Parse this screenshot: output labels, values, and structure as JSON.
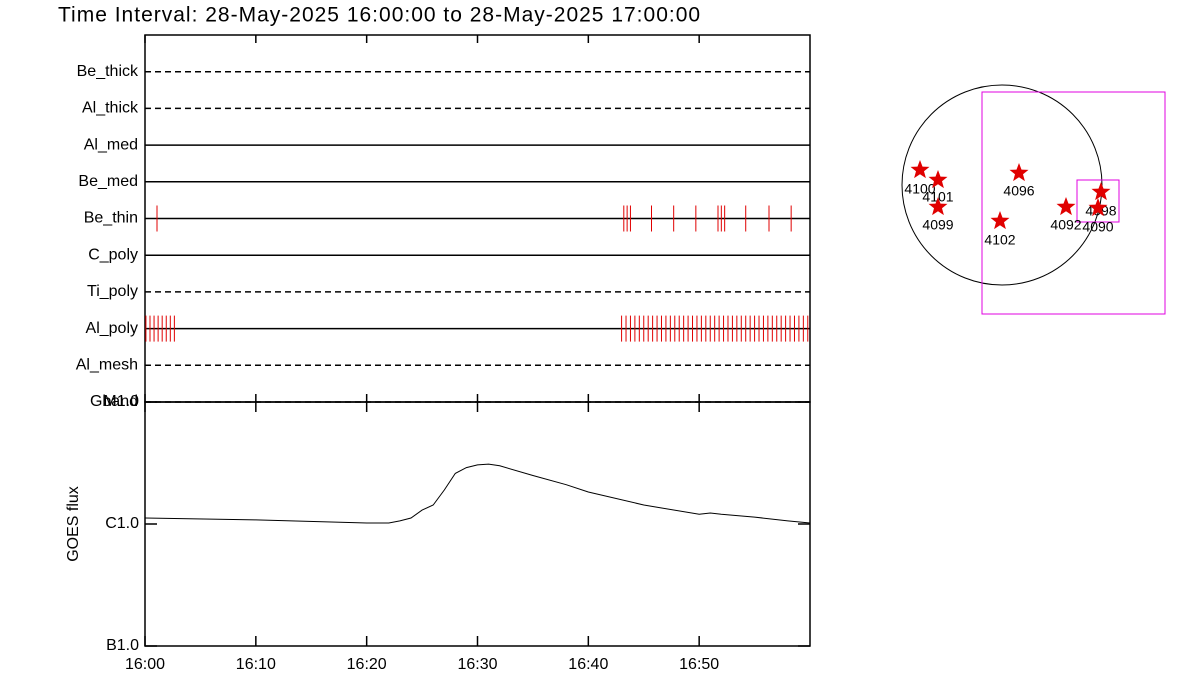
{
  "chart_data": [
    {
      "type": "event",
      "title": "Time Interval: 28-May-2025 16:00:00 to 28-May-2025 17:00:00",
      "categories": [
        "Be_thick",
        "Al_thick",
        "Al_med",
        "Be_med",
        "Be_thin",
        "C_poly",
        "Ti_poly",
        "Al_poly",
        "Al_mesh",
        "Gband"
      ],
      "line_styles": [
        "dashed",
        "dashed",
        "solid",
        "solid",
        "solid",
        "solid",
        "dashed",
        "solid",
        "dashed",
        "dashed"
      ],
      "color": "#e00000",
      "xlim": [
        "16:00:00",
        "17:00:00"
      ],
      "xticks": [
        "16:00:00",
        "16:10:00",
        "16:20:00",
        "16:30:00",
        "16:40:00",
        "16:50:00"
      ],
      "events": [
        [],
        [],
        [],
        [],
        [
          "16:01:05",
          "16:43:12",
          "16:43:30",
          "16:43:48",
          "16:45:42",
          "16:47:42",
          "16:49:42",
          "16:51:42",
          "16:52:00",
          "16:52:18",
          "16:54:12",
          "16:56:18",
          "16:58:18"
        ],
        [],
        [],
        [
          "16:00:05",
          "16:00:27",
          "16:00:49",
          "16:01:11",
          "16:01:33",
          "16:01:55",
          "16:02:17",
          "16:02:39",
          "16:43:00",
          "16:43:24",
          "16:43:48",
          "16:44:12",
          "16:44:36",
          "16:45:00",
          "16:45:24",
          "16:45:48",
          "16:46:12",
          "16:46:36",
          "16:47:00",
          "16:47:24",
          "16:47:48",
          "16:48:12",
          "16:48:36",
          "16:49:00",
          "16:49:24",
          "16:49:48",
          "16:50:12",
          "16:50:36",
          "16:51:00",
          "16:51:24",
          "16:51:48",
          "16:52:12",
          "16:52:36",
          "16:53:00",
          "16:53:24",
          "16:53:48",
          "16:54:12",
          "16:54:36",
          "16:55:00",
          "16:55:24",
          "16:55:48",
          "16:56:12",
          "16:56:36",
          "16:57:00",
          "16:57:24",
          "16:57:48",
          "16:58:12",
          "16:58:36",
          "16:59:00",
          "16:59:24",
          "16:59:48"
        ],
        [],
        []
      ]
    },
    {
      "type": "line",
      "ylabel": "GOES flux",
      "log_y": true,
      "color": "#000000",
      "xlim": [
        "16:00:00",
        "17:00:00"
      ],
      "xticks": [
        {
          "value": "16:00:00",
          "label": "16:00"
        },
        {
          "value": "16:10:00",
          "label": "16:10"
        },
        {
          "value": "16:20:00",
          "label": "16:20"
        },
        {
          "value": "16:30:00",
          "label": "16:30"
        },
        {
          "value": "16:40:00",
          "label": "16:40"
        },
        {
          "value": "16:50:00",
          "label": "16:50"
        }
      ],
      "ylim": [
        1e-07,
        1e-05
      ],
      "yticks": [
        {
          "value": 1e-07,
          "label": "B1.0"
        },
        {
          "value": 1e-06,
          "label": "C1.0"
        },
        {
          "value": 1e-05,
          "label": "M1.0"
        }
      ],
      "x": [
        "16:00:00",
        "16:10:00",
        "16:20:00",
        "16:22:00",
        "16:23:00",
        "16:24:00",
        "16:25:00",
        "16:26:00",
        "16:27:00",
        "16:28:00",
        "16:29:00",
        "16:30:00",
        "16:31:00",
        "16:32:00",
        "16:35:00",
        "16:38:00",
        "16:40:00",
        "16:45:00",
        "16:50:00",
        "16:51:00",
        "16:52:00",
        "16:55:00",
        "16:58:00",
        "17:00:00"
      ],
      "values": [
        1.12e-06,
        1.08e-06,
        1.02e-06,
        1.02e-06,
        1.06e-06,
        1.12e-06,
        1.3e-06,
        1.43e-06,
        1.9e-06,
        2.6e-06,
        2.9e-06,
        3.05e-06,
        3.1e-06,
        3e-06,
        2.5e-06,
        2.1e-06,
        1.83e-06,
        1.43e-06,
        1.2e-06,
        1.23e-06,
        1.2e-06,
        1.14e-06,
        1.06e-06,
        1.02e-06
      ]
    }
  ],
  "regions": [
    "4100",
    "4101",
    "4099",
    "4096",
    "4102",
    "4092",
    "4098",
    "4090"
  ]
}
